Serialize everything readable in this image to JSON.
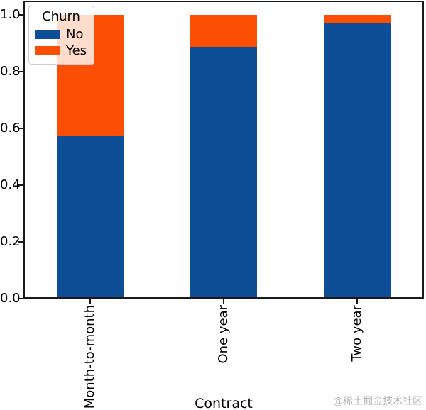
{
  "chart_data": {
    "type": "bar",
    "stacked": true,
    "title": "",
    "xlabel": "Contract",
    "ylabel": "",
    "categories": [
      "Month-to-month",
      "One year",
      "Two year"
    ],
    "series": [
      {
        "name": "No",
        "color": "#0e4e96",
        "values": [
          0.573,
          0.887,
          0.972
        ]
      },
      {
        "name": "Yes",
        "color": "#fc4f03",
        "values": [
          0.427,
          0.113,
          0.028
        ]
      }
    ],
    "ylim": [
      0,
      1.05
    ],
    "xlim": [
      -0.5,
      2.5
    ],
    "bar_width": 0.5,
    "yticks": [
      {
        "value": 0.0,
        "label": "0.0"
      },
      {
        "value": 0.2,
        "label": "0.2"
      },
      {
        "value": 0.4,
        "label": "0.4"
      },
      {
        "value": 0.6,
        "label": "0.6"
      },
      {
        "value": 0.8,
        "label": "0.8"
      },
      {
        "value": 1.0,
        "label": "1.0"
      }
    ],
    "legend": {
      "title": "Churn",
      "position": "upper-left"
    },
    "grid": false
  },
  "watermark": "@稀土掘金技术社区",
  "colors": {
    "axis": "#1a1a1a",
    "text": "#000000",
    "legend_border": "#cccccc",
    "watermark": "#b5b5b5"
  }
}
